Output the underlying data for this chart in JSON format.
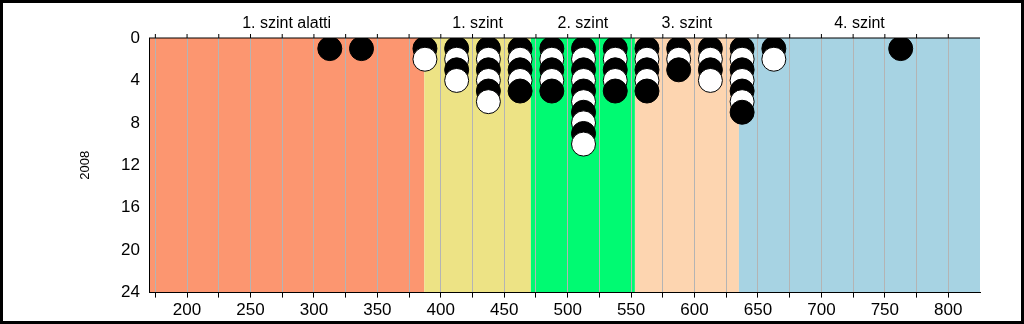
{
  "chart_data": {
    "type": "scatter",
    "ylabel": "2008",
    "xlim": [
      170,
      825
    ],
    "xticks": [
      {
        "value": 175,
        "label": null
      },
      200,
      {
        "value": 225,
        "label": null
      },
      250,
      {
        "value": 275,
        "label": null
      },
      300,
      {
        "value": 325,
        "label": null
      },
      350,
      {
        "value": 375,
        "label": null
      },
      400,
      {
        "value": 425,
        "label": null
      },
      450,
      {
        "value": 475,
        "label": null
      },
      500,
      {
        "value": 525,
        "label": null
      },
      550,
      {
        "value": 575,
        "label": null
      },
      600,
      {
        "value": 625,
        "label": null
      },
      650,
      {
        "value": 675,
        "label": null
      },
      700,
      {
        "value": 725,
        "label": null
      },
      750,
      {
        "value": 775,
        "label": null
      },
      800
    ],
    "ylim": [
      24,
      0
    ],
    "yticks": [
      0,
      4,
      8,
      12,
      16,
      20,
      24
    ],
    "grid": "x",
    "legend": false,
    "marker": "circle",
    "bands": [
      {
        "axis": "x",
        "from": 170,
        "to": 387,
        "label": "1. szint alatti",
        "color": "#fc9670"
      },
      {
        "axis": "x",
        "from": 387,
        "to": 471,
        "label": "1. szint",
        "color": "#ede385"
      },
      {
        "axis": "x",
        "from": 471,
        "to": 553,
        "label": "2. szint",
        "color": "#00fa72"
      },
      {
        "axis": "x",
        "from": 553,
        "to": 635,
        "label": "3. szint",
        "color": "#fdd5b0"
      },
      {
        "axis": "x",
        "from": 635,
        "to": 825,
        "label": "4. szint",
        "color": "#a7d3e3"
      }
    ],
    "series": [
      {
        "x": [
          312.5,
          337.5,
          387.5,
          387.5,
          412.5,
          412.5,
          412.5,
          412.5,
          437.5,
          437.5,
          437.5,
          437.5,
          437.5,
          437.5,
          462.5,
          462.5,
          462.5,
          462.5,
          462.5,
          487.5,
          487.5,
          487.5,
          487.5,
          487.5,
          512.5,
          512.5,
          512.5,
          512.5,
          512.5,
          512.5,
          512.5,
          512.5,
          512.5,
          512.5,
          537.5,
          537.5,
          537.5,
          537.5,
          537.5,
          562.5,
          562.5,
          562.5,
          562.5,
          562.5,
          587.5,
          587.5,
          587.5,
          612.5,
          612.5,
          612.5,
          612.5,
          637.5,
          637.5,
          637.5,
          637.5,
          637.5,
          637.5,
          637.5,
          662.5,
          662.5,
          762.5
        ],
        "values": [
          1,
          1,
          1,
          2,
          1,
          2,
          3,
          4,
          1,
          2,
          3,
          4,
          5,
          6,
          1,
          2,
          3,
          4,
          5,
          1,
          2,
          3,
          4,
          5,
          1,
          2,
          3,
          4,
          5,
          6,
          7,
          8,
          9,
          10,
          1,
          2,
          3,
          4,
          5,
          1,
          2,
          3,
          4,
          5,
          1,
          2,
          3,
          1,
          2,
          3,
          4,
          1,
          2,
          3,
          4,
          5,
          6,
          7,
          1,
          2,
          1
        ],
        "colors": [
          "#000000",
          "#000000",
          "#000000",
          "#ffffff",
          "#000000",
          "#ffffff",
          "#000000",
          "#ffffff",
          "#000000",
          "#ffffff",
          "#000000",
          "#ffffff",
          "#000000",
          "#ffffff",
          "#000000",
          "#ffffff",
          "#000000",
          "#ffffff",
          "#000000",
          "#000000",
          "#ffffff",
          "#000000",
          "#ffffff",
          "#000000",
          "#000000",
          "#ffffff",
          "#000000",
          "#ffffff",
          "#000000",
          "#ffffff",
          "#000000",
          "#ffffff",
          "#000000",
          "#ffffff",
          "#000000",
          "#ffffff",
          "#000000",
          "#ffffff",
          "#000000",
          "#000000",
          "#ffffff",
          "#000000",
          "#ffffff",
          "#000000",
          "#000000",
          "#ffffff",
          "#000000",
          "#000000",
          "#ffffff",
          "#000000",
          "#ffffff",
          "#000000",
          "#ffffff",
          "#000000",
          "#ffffff",
          "#000000",
          "#ffffff",
          "#000000",
          "#000000",
          "#ffffff",
          "#000000"
        ]
      }
    ]
  }
}
